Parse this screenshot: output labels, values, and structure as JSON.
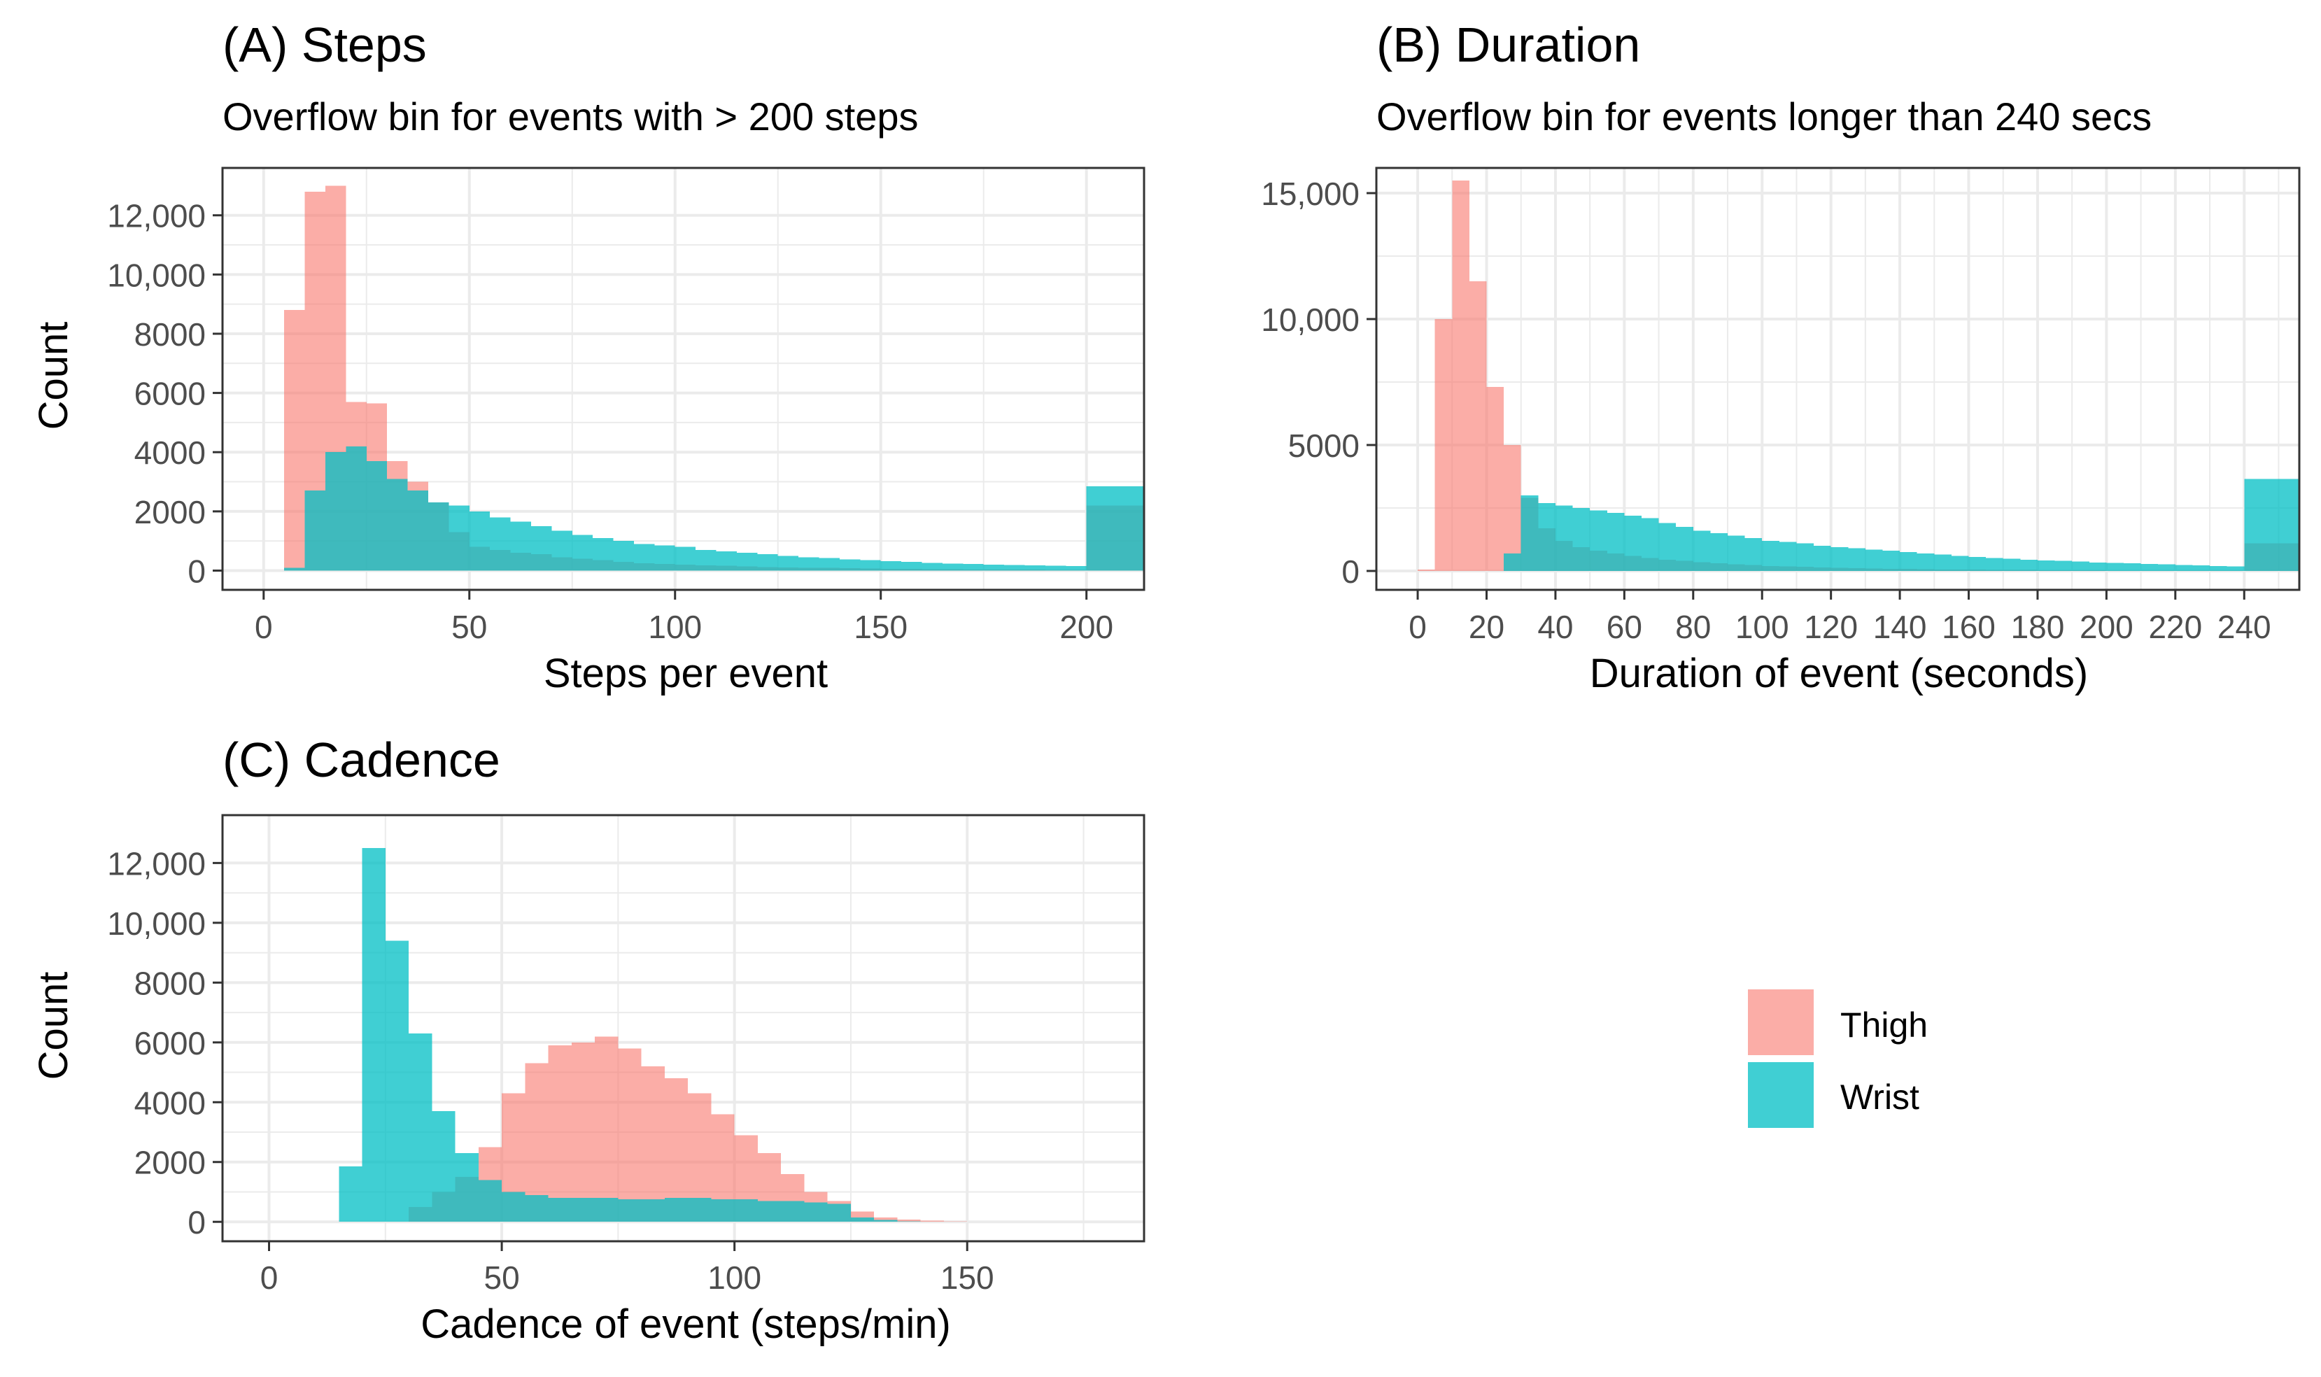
{
  "legend": {
    "position": "right",
    "entries": [
      {
        "label": "Thigh",
        "color": "#F8766D"
      },
      {
        "label": "Wrist",
        "color": "#00BFC4"
      }
    ]
  },
  "style": {
    "thigh_color": "#F8766D",
    "wrist_color": "#00BFC4",
    "overlap_color": "#4E9B9E",
    "grid_color": "#EBEBEB",
    "panel_border": "#333333",
    "tick_color": "#4D4D4D"
  },
  "chart_data": [
    {
      "id": "A",
      "type": "histogram",
      "title": "(A) Steps",
      "subtitle": "Overflow bin for events with > 200 steps",
      "xlabel": "Steps per event",
      "ylabel": "Count",
      "xlim": [
        -10,
        214
      ],
      "ylim": [
        -650,
        13600
      ],
      "xticks": [
        0,
        50,
        100,
        150,
        200
      ],
      "xtick_labels": [
        "0",
        "50",
        "100",
        "150",
        "200"
      ],
      "xminor": [
        25,
        75,
        125,
        175
      ],
      "yticks": [
        0,
        2000,
        4000,
        6000,
        8000,
        10000,
        12000
      ],
      "ytick_labels": [
        "0",
        "2000",
        "4000",
        "6000",
        "8000",
        "10,000",
        "12,000"
      ],
      "yminor": [
        1000,
        3000,
        5000,
        7000,
        9000,
        11000
      ],
      "overflow_bin": [
        200,
        214
      ],
      "bin_edges": [
        5,
        10,
        15,
        20,
        25,
        30,
        35,
        40,
        45,
        50,
        55,
        60,
        65,
        70,
        75,
        80,
        85,
        90,
        95,
        100,
        105,
        110,
        115,
        120,
        125,
        130,
        135,
        140,
        145,
        150,
        155,
        160,
        165,
        170,
        175,
        180,
        185,
        190,
        195,
        200,
        214
      ],
      "series": [
        {
          "name": "Thigh",
          "values": [
            8800,
            12800,
            13000,
            5700,
            5650,
            3700,
            3000,
            2300,
            1300,
            800,
            700,
            600,
            550,
            450,
            400,
            350,
            300,
            250,
            220,
            200,
            180,
            160,
            140,
            120,
            110,
            100,
            90,
            80,
            70,
            60,
            55,
            50,
            45,
            40,
            35,
            30,
            30,
            25,
            20,
            2200
          ]
        },
        {
          "name": "Wrist",
          "values": [
            100,
            2700,
            4000,
            4200,
            3700,
            3100,
            2700,
            2300,
            2200,
            2000,
            1800,
            1650,
            1500,
            1350,
            1200,
            1100,
            1000,
            900,
            850,
            800,
            700,
            650,
            600,
            550,
            500,
            450,
            420,
            380,
            350,
            320,
            300,
            260,
            240,
            220,
            200,
            190,
            180,
            170,
            150,
            2850
          ]
        }
      ]
    },
    {
      "id": "B",
      "type": "histogram",
      "title": "(B) Duration",
      "subtitle": "Overflow bin for events longer than 240 secs",
      "xlabel": "Duration of event (seconds)",
      "ylabel": "",
      "xlim": [
        -12,
        256
      ],
      "ylim": [
        -750,
        16000
      ],
      "xticks": [
        0,
        20,
        40,
        60,
        80,
        100,
        120,
        140,
        160,
        180,
        200,
        220,
        240
      ],
      "xtick_labels": [
        "0",
        "20",
        "40",
        "60",
        "80",
        "100",
        "120",
        "140",
        "160",
        "180",
        "200",
        "220",
        "240"
      ],
      "xminor": [
        10,
        30,
        50,
        70,
        90,
        110,
        130,
        150,
        170,
        190,
        210,
        230,
        250
      ],
      "yticks": [
        0,
        5000,
        10000,
        15000
      ],
      "ytick_labels": [
        "0",
        "5000",
        "10,000",
        "15,000"
      ],
      "yminor": [
        2500,
        7500,
        12500
      ],
      "overflow_bin": [
        240,
        256
      ],
      "bin_edges": [
        0,
        5,
        10,
        15,
        20,
        25,
        30,
        35,
        40,
        45,
        50,
        55,
        60,
        65,
        70,
        75,
        80,
        85,
        90,
        95,
        100,
        105,
        110,
        115,
        120,
        125,
        130,
        135,
        140,
        145,
        150,
        155,
        160,
        165,
        170,
        175,
        180,
        185,
        190,
        195,
        200,
        205,
        210,
        215,
        220,
        225,
        230,
        235,
        240,
        256
      ],
      "series": [
        {
          "name": "Thigh",
          "values": [
            60,
            10000,
            15500,
            11500,
            7300,
            5000,
            2900,
            1700,
            1200,
            950,
            800,
            700,
            600,
            520,
            450,
            400,
            350,
            300,
            260,
            230,
            200,
            180,
            160,
            140,
            120,
            110,
            100,
            90,
            80,
            70,
            60,
            55,
            50,
            45,
            40,
            35,
            30,
            30,
            25,
            25,
            20,
            20,
            15,
            15,
            12,
            10,
            10,
            10,
            1100
          ]
        },
        {
          "name": "Wrist",
          "values": [
            0,
            0,
            0,
            0,
            0,
            700,
            3000,
            2700,
            2600,
            2500,
            2400,
            2300,
            2200,
            2100,
            1900,
            1750,
            1600,
            1500,
            1400,
            1300,
            1200,
            1150,
            1100,
            1000,
            950,
            900,
            850,
            800,
            750,
            700,
            650,
            600,
            560,
            520,
            480,
            450,
            420,
            400,
            370,
            340,
            320,
            300,
            280,
            260,
            240,
            220,
            200,
            180,
            3650
          ]
        }
      ]
    },
    {
      "id": "C",
      "type": "histogram",
      "title": "(C) Cadence",
      "subtitle": "",
      "xlabel": "Cadence of event (steps/min)",
      "ylabel": "Count",
      "xlim": [
        -10,
        188
      ],
      "ylim": [
        -650,
        13600
      ],
      "xticks": [
        0,
        50,
        100,
        150
      ],
      "xtick_labels": [
        "0",
        "50",
        "100",
        "150"
      ],
      "xminor": [
        25,
        75,
        125,
        175
      ],
      "yticks": [
        0,
        2000,
        4000,
        6000,
        8000,
        10000,
        12000
      ],
      "ytick_labels": [
        "0",
        "2000",
        "4000",
        "6000",
        "8000",
        "10,000",
        "12,000"
      ],
      "yminor": [
        1000,
        3000,
        5000,
        7000,
        9000,
        11000
      ],
      "overflow_bin": null,
      "bin_edges": [
        15,
        20,
        25,
        30,
        35,
        40,
        45,
        50,
        55,
        60,
        65,
        70,
        75,
        80,
        85,
        90,
        95,
        100,
        105,
        110,
        115,
        120,
        125,
        130,
        135,
        140,
        145,
        150,
        155,
        160,
        165,
        170,
        175,
        180
      ],
      "series": [
        {
          "name": "Thigh",
          "values": [
            0,
            0,
            0,
            500,
            1000,
            1500,
            2500,
            4300,
            5300,
            5900,
            6000,
            6200,
            5800,
            5200,
            4800,
            4300,
            3600,
            2900,
            2300,
            1600,
            1000,
            700,
            350,
            150,
            80,
            40,
            20,
            10,
            5,
            5,
            0,
            0,
            0
          ]
        },
        {
          "name": "Wrist",
          "values": [
            1850,
            12500,
            9400,
            6300,
            3700,
            2300,
            1400,
            1000,
            900,
            800,
            800,
            800,
            750,
            750,
            800,
            800,
            750,
            750,
            700,
            700,
            650,
            600,
            150,
            60,
            20,
            10,
            5,
            0,
            0,
            0,
            0,
            0,
            0
          ]
        }
      ]
    }
  ]
}
